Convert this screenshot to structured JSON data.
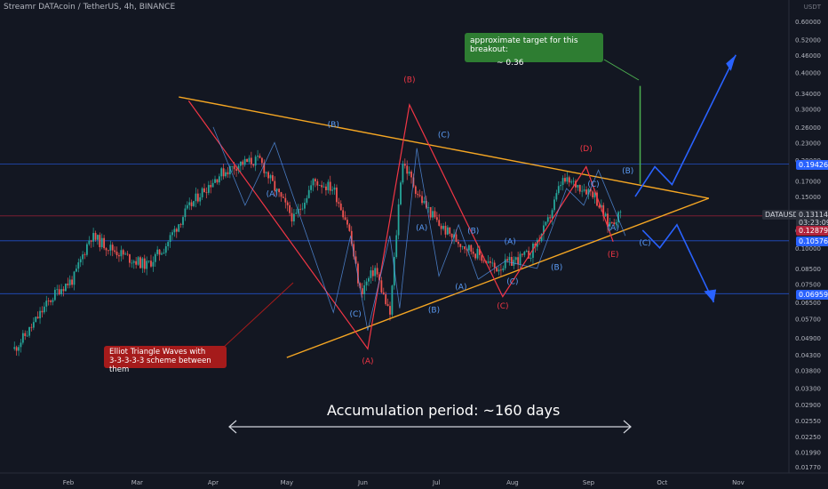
{
  "header": {
    "symbol": "Streamr DATAcoin / TetherUS, 4h, BINANCE"
  },
  "annotations": {
    "target_line1": "approximate target for this breakout:",
    "target_line2": "~ 0.36",
    "elliot_line1": "Elliot Triangle Waves with",
    "elliot_line2": "3-3-3-3-3 scheme between them",
    "accumulation": "Accumulation period: ~160 days"
  },
  "price_tags": {
    "symbol": "DATAUSDT",
    "last": "0.13114",
    "countdown": "03:23:09",
    "support_mid": "0.12879",
    "res": "0.19426",
    "sup1": "0.10576",
    "sup2": "0.06959"
  },
  "colors": {
    "background": "#131722",
    "up": "#26a69a",
    "down": "#ef5350",
    "trendline": "#f5a623",
    "wave_red": "#f23645",
    "wave_blue": "#5b9cf6",
    "projection": "#2962ff",
    "target_green": "#4caf50"
  },
  "chart_data": {
    "type": "candlestick",
    "scale": "log",
    "y_axis_title": "USDT",
    "y_ticks": [
      0.6,
      0.52,
      0.46,
      0.4,
      0.34,
      0.3,
      0.26,
      0.23,
      0.2,
      0.17,
      0.15,
      0.13,
      0.115,
      0.1,
      0.085,
      0.075,
      0.065,
      0.057,
      0.049,
      0.043,
      0.038,
      0.033,
      0.029,
      0.0255,
      0.0225,
      0.0199,
      0.0177
    ],
    "y_tick_labels": [
      "0.60000",
      "0.52000",
      "0.46000",
      "0.40000",
      "0.34000",
      "0.30000",
      "0.26000",
      "0.23000",
      "0.20000",
      "0.17000",
      "0.15000",
      "0.13000",
      "0.11500",
      "0.10000",
      "0.08500",
      "0.07500",
      "0.06500",
      "0.05700",
      "0.04900",
      "0.04300",
      "0.03800",
      "0.03300",
      "0.02900",
      "0.02550",
      "0.02250",
      "0.01990",
      "0.01770"
    ],
    "x_labels": [
      "Feb",
      "Mar",
      "Apr",
      "May",
      "Jun",
      "Jul",
      "Aug",
      "Sep",
      "Oct",
      "Nov"
    ],
    "price_path": [
      [
        "2023-01-10",
        0.045
      ],
      [
        "2023-01-16",
        0.052
      ],
      [
        "2023-01-22",
        0.062
      ],
      [
        "2023-01-28",
        0.072
      ],
      [
        "2023-02-03",
        0.078
      ],
      [
        "2023-02-10",
        0.11
      ],
      [
        "2023-02-18",
        0.1
      ],
      [
        "2023-02-26",
        0.092
      ],
      [
        "2023-03-05",
        0.087
      ],
      [
        "2023-03-12",
        0.1
      ],
      [
        "2023-03-20",
        0.13
      ],
      [
        "2023-03-27",
        0.155
      ],
      [
        "2023-04-04",
        0.18
      ],
      [
        "2023-04-12",
        0.195
      ],
      [
        "2023-04-20",
        0.2
      ],
      [
        "2023-04-27",
        0.155
      ],
      [
        "2023-05-04",
        0.125
      ],
      [
        "2023-05-12",
        0.17
      ],
      [
        "2023-05-20",
        0.16
      ],
      [
        "2023-05-26",
        0.12
      ],
      [
        "2023-05-31",
        0.07
      ],
      [
        "2023-06-06",
        0.085
      ],
      [
        "2023-06-12",
        0.058
      ],
      [
        "2023-06-17",
        0.2
      ],
      [
        "2023-06-24",
        0.15
      ],
      [
        "2023-07-02",
        0.12
      ],
      [
        "2023-07-10",
        0.105
      ],
      [
        "2023-07-18",
        0.095
      ],
      [
        "2023-07-25",
        0.085
      ],
      [
        "2023-08-01",
        0.09
      ],
      [
        "2023-08-08",
        0.095
      ],
      [
        "2023-08-15",
        0.12
      ],
      [
        "2023-08-21",
        0.17
      ],
      [
        "2023-08-27",
        0.165
      ],
      [
        "2023-09-03",
        0.155
      ],
      [
        "2023-09-09",
        0.12
      ],
      [
        "2023-09-14",
        0.131
      ]
    ],
    "elliott_waves": {
      "red": [
        [
          "(A)",
          "2023-06-03",
          0.045
        ],
        [
          "(B)",
          "2023-06-20",
          0.31
        ],
        [
          "(C)",
          "2023-07-28",
          0.068
        ],
        [
          "(D)",
          "2023-08-31",
          0.19
        ],
        [
          "(E)",
          "2023-09-11",
          0.105
        ]
      ],
      "blue_labels": [
        "(A)",
        "(B)",
        "(C)",
        "(A)",
        "(B)",
        "(C)",
        "(A)",
        "(B)",
        "(C)",
        "(A)",
        "(B)",
        "(C)",
        "(A)",
        "(B)",
        "(C)"
      ]
    },
    "levels": [
      0.19426,
      0.10576,
      0.06959,
      0.12879
    ],
    "projection_target": 0.36
  }
}
